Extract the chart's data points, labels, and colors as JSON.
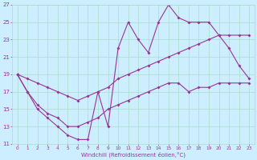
{
  "xlabel": "Windchill (Refroidissement éolien,°C)",
  "bg_color": "#cceeff",
  "grid_color": "#aaddcc",
  "line_color": "#993399",
  "xlim": [
    -0.5,
    23.5
  ],
  "ylim": [
    11,
    27
  ],
  "xticks": [
    0,
    1,
    2,
    3,
    4,
    5,
    6,
    7,
    8,
    9,
    10,
    11,
    12,
    13,
    14,
    15,
    16,
    17,
    18,
    19,
    20,
    21,
    22,
    23
  ],
  "yticks": [
    11,
    13,
    15,
    17,
    19,
    21,
    23,
    25,
    27
  ],
  "x": [
    0,
    1,
    2,
    3,
    4,
    5,
    6,
    7,
    8,
    9,
    10,
    11,
    12,
    13,
    14,
    15,
    16,
    17,
    18,
    19,
    20,
    21,
    22,
    23
  ],
  "y_main": [
    19,
    17,
    15,
    14,
    13,
    12,
    11.5,
    11.5,
    17,
    13,
    22,
    25,
    23,
    21.5,
    25,
    27,
    25.5,
    25,
    25,
    25,
    23.5,
    22,
    20,
    18.5
  ],
  "y_upper": [
    19,
    18.5,
    18,
    17.5,
    17,
    16.5,
    16,
    16.5,
    17,
    17.5,
    18.5,
    19,
    19.5,
    20,
    20.5,
    21,
    21.5,
    22,
    22.5,
    23,
    23.5,
    23.5,
    23.5,
    23.5
  ],
  "y_lower": [
    19,
    17,
    15.5,
    14.5,
    14,
    13,
    13,
    13.5,
    14,
    15,
    15.5,
    16,
    16.5,
    17,
    17.5,
    18,
    18,
    17,
    17.5,
    17.5,
    18,
    18,
    18,
    18
  ]
}
